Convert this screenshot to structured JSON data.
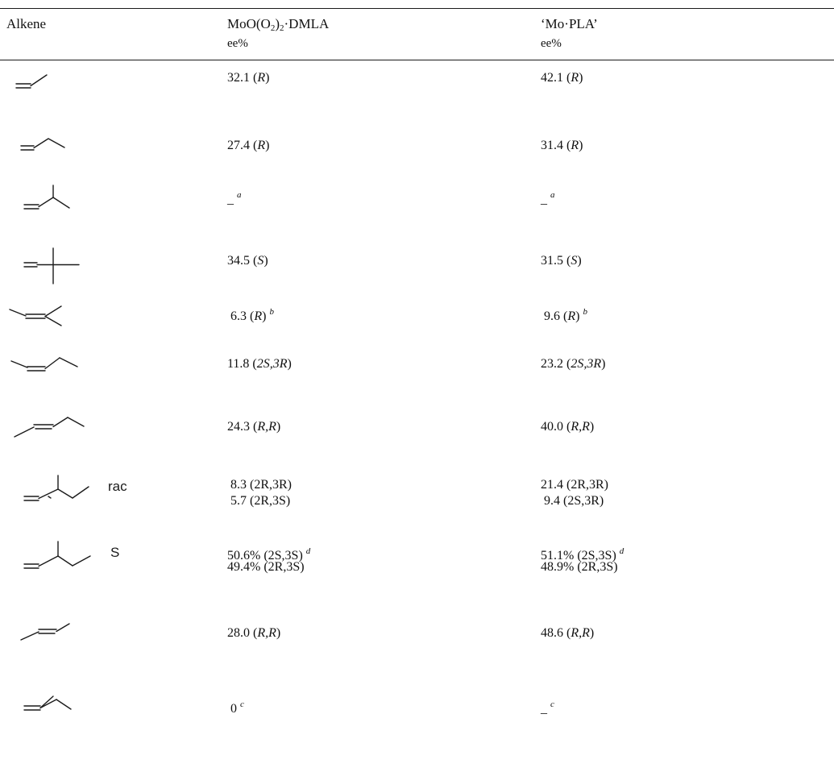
{
  "header": {
    "col_alkene": "Alkene",
    "col_dmla_line1_prefix": "MoO(O",
    "col_dmla_line1_sub": "2",
    "col_dmla_line1_mid": ")",
    "col_dmla_line1_sub2": "2",
    "col_dmla_line1_suffix": "·DMLA",
    "col_dmla_line2": "ee%",
    "col_pla_line1": "‘Mo·PLA’",
    "col_pla_line2": "ee%"
  },
  "rows": [
    {
      "structure_icon": "propene-icon",
      "tag": "",
      "dmla": [
        {
          "num": "32.1",
          "config": "R",
          "note": ""
        }
      ],
      "pla": [
        {
          "num": "42.1",
          "config": "R",
          "note": ""
        }
      ]
    },
    {
      "structure_icon": "1-butene-icon",
      "tag": "",
      "dmla": [
        {
          "num": "27.4",
          "config": "R",
          "note": ""
        }
      ],
      "pla": [
        {
          "num": "31.4",
          "config": "R",
          "note": ""
        }
      ]
    },
    {
      "structure_icon": "3-methyl-1-butene-icon",
      "tag": "",
      "dmla": [
        {
          "num": "_",
          "config": "",
          "note": "a"
        }
      ],
      "pla": [
        {
          "num": "_",
          "config": "",
          "note": "a"
        }
      ]
    },
    {
      "structure_icon": "3,3-dimethyl-1-butene-icon",
      "tag": "",
      "dmla": [
        {
          "num": "34.5",
          "config": "S",
          "note": ""
        }
      ],
      "pla": [
        {
          "num": "31.5",
          "config": "S",
          "note": ""
        }
      ]
    },
    {
      "structure_icon": "2-methyl-2-butene-icon",
      "tag": "",
      "dmla": [
        {
          "num": "6.3",
          "config": "R",
          "note": "b"
        }
      ],
      "pla": [
        {
          "num": "9.6",
          "config": "R",
          "note": "b"
        }
      ]
    },
    {
      "structure_icon": "cis-2-pentene-icon",
      "tag": "",
      "dmla": [
        {
          "num": "11.8",
          "config": "2S,3R",
          "note": ""
        }
      ],
      "pla": [
        {
          "num": "23.2",
          "config": "2S,3R",
          "note": ""
        }
      ]
    },
    {
      "structure_icon": "trans-2-pentene-icon",
      "tag": "",
      "dmla": [
        {
          "num": "24.3",
          "config": "R,R",
          "note": ""
        }
      ],
      "pla": [
        {
          "num": "40.0",
          "config": "R,R",
          "note": ""
        }
      ]
    },
    {
      "structure_icon": "3-methyl-1-pentene-rac-icon",
      "tag": "rac",
      "dmla": [
        {
          "num": "8.3",
          "config": "2R,3R",
          "note": ""
        },
        {
          "num": "5.7",
          "config": "2R,3S",
          "note": ""
        }
      ],
      "pla": [
        {
          "num": "21.4",
          "config": "2R,3R",
          "note": ""
        },
        {
          "num": "9.4",
          "config": "2S,3R",
          "note": ""
        }
      ]
    },
    {
      "structure_icon": "3-methyl-1-pentene-s-icon",
      "tag": "S",
      "dmla": [
        {
          "num": "50.6%",
          "config": "2S,3S",
          "note": "d"
        },
        {
          "num": "49.4%",
          "config": "2R,3S",
          "note": ""
        }
      ],
      "pla": [
        {
          "num": "51.1%",
          "config": "2S,3S",
          "note": "d"
        },
        {
          "num": "48.9%",
          "config": "2R,3S",
          "note": ""
        }
      ]
    },
    {
      "structure_icon": "trans-2-butene-icon",
      "tag": "",
      "dmla": [
        {
          "num": "28.0",
          "config": "R,R",
          "note": ""
        }
      ],
      "pla": [
        {
          "num": "48.6",
          "config": "R,R",
          "note": ""
        }
      ]
    },
    {
      "structure_icon": "2-methyl-1-butene-icon",
      "tag": "",
      "dmla": [
        {
          "num": "0",
          "config": "",
          "note": "c"
        }
      ],
      "pla": [
        {
          "num": "_",
          "config": "",
          "note": "c"
        }
      ]
    }
  ]
}
